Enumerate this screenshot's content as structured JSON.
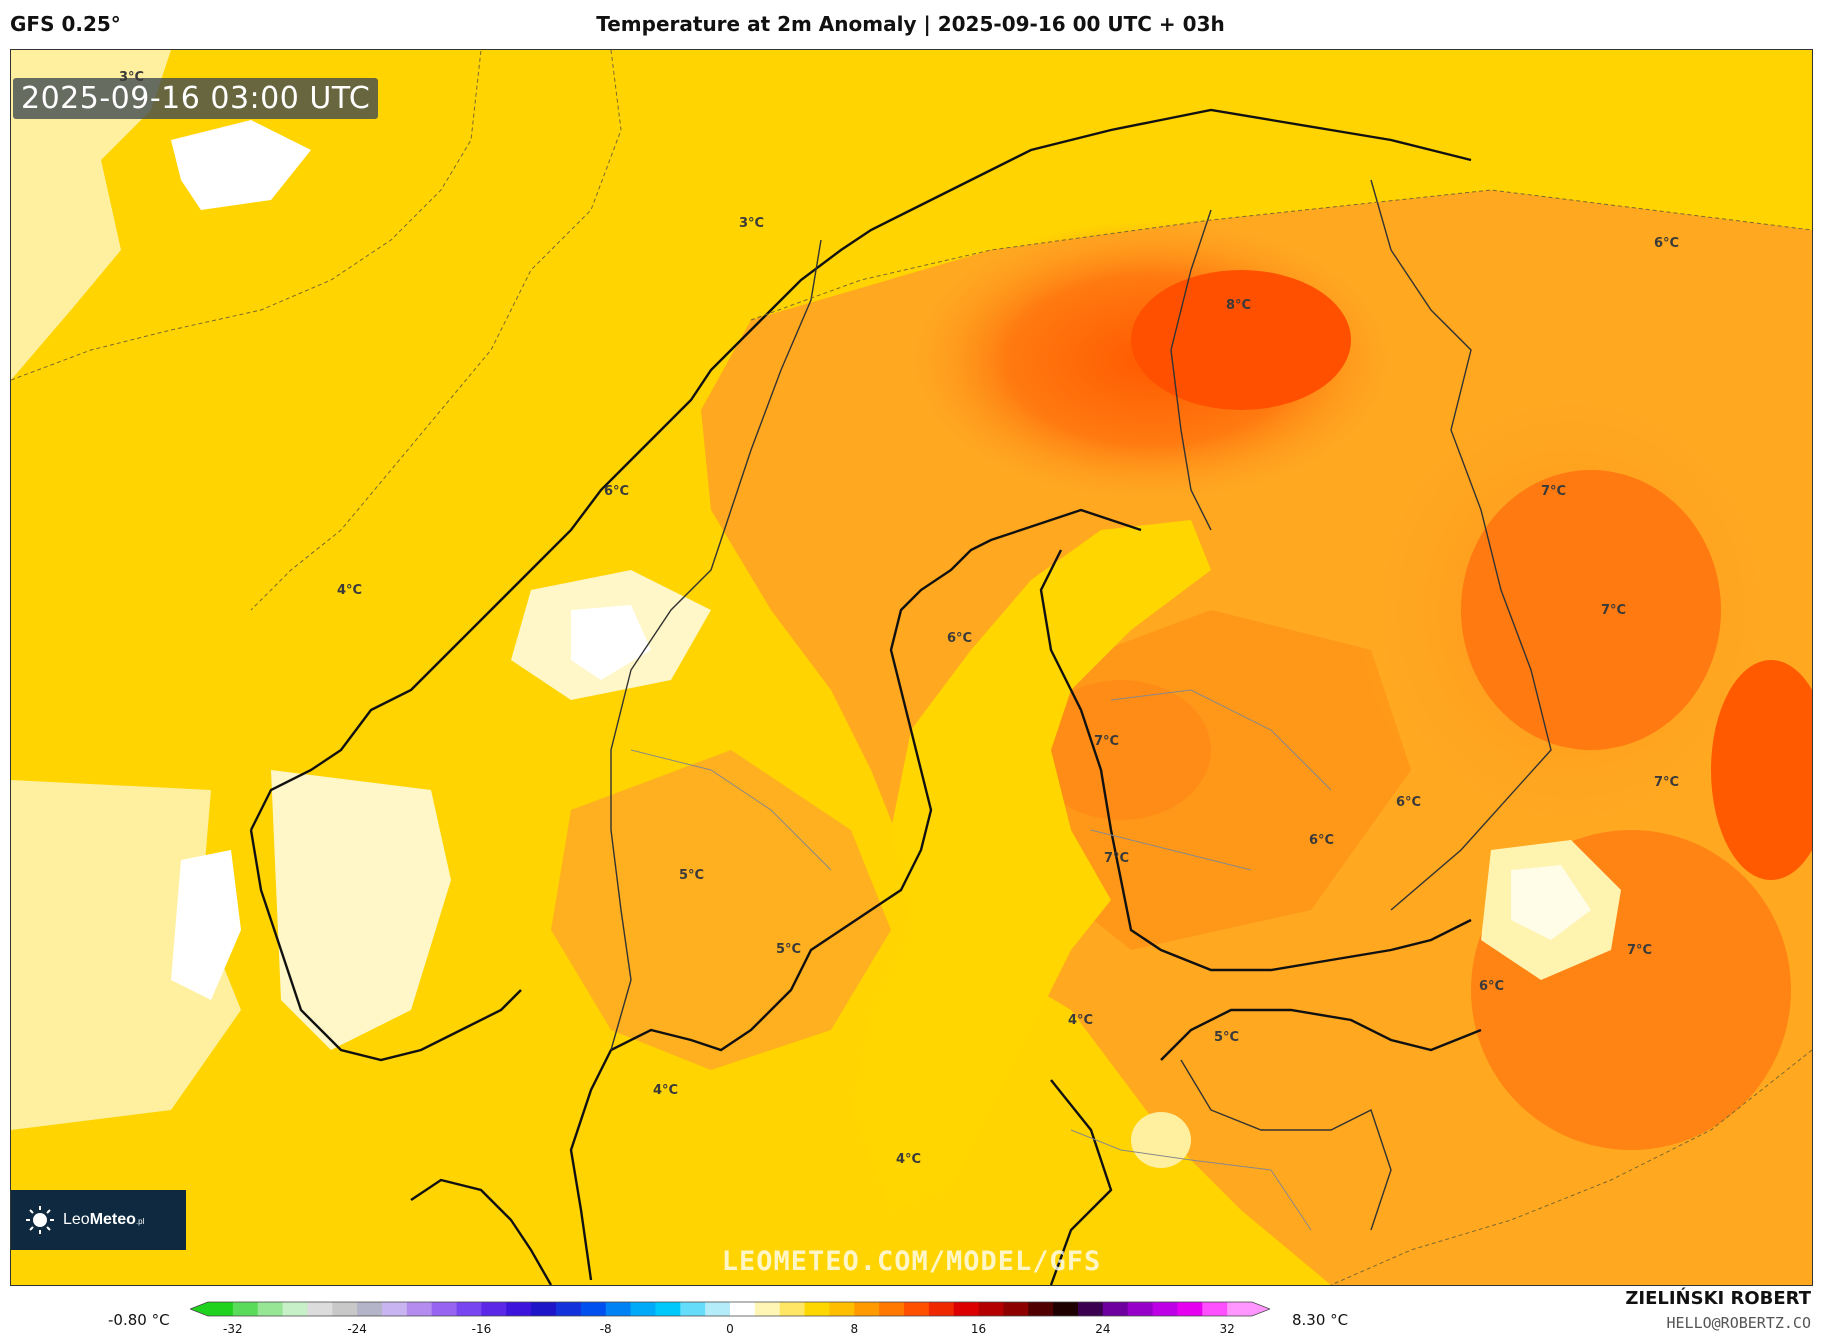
{
  "header": {
    "model": "GFS 0.25°",
    "title": "Temperature at 2m Anomaly | 2025-09-16 00 UTC + 03h"
  },
  "map": {
    "timestamp": "2025-09-16 03:00 UTC",
    "watermark": "LEOMETEO.COM/MODEL/GFS",
    "isotherm_labels": [
      {
        "text": "3°C"
      },
      {
        "text": "3°C"
      },
      {
        "text": "4°C"
      },
      {
        "text": "6°C"
      },
      {
        "text": "6°C"
      },
      {
        "text": "8°C"
      },
      {
        "text": "6°C"
      },
      {
        "text": "7°C"
      },
      {
        "text": "7°C"
      },
      {
        "text": "7°C"
      },
      {
        "text": "7°C"
      },
      {
        "text": "6°C"
      },
      {
        "text": "6°C"
      },
      {
        "text": "7°C"
      },
      {
        "text": "5°C"
      },
      {
        "text": "5°C"
      },
      {
        "text": "7°C"
      },
      {
        "text": "6°C"
      },
      {
        "text": "4°C"
      },
      {
        "text": "5°C"
      },
      {
        "text": "4°C"
      },
      {
        "text": "4°C"
      }
    ]
  },
  "logo": {
    "name_light": "Leo",
    "name_bold": "Meteo",
    "suffix": ".pl"
  },
  "legend": {
    "min_label": "-0.80 °C",
    "max_label": "8.30 °C",
    "ticks": [
      "-32",
      "-24",
      "-16",
      "-8",
      "0",
      "8",
      "16",
      "24",
      "32"
    ],
    "colors": [
      "#1ed21e",
      "#5adc5a",
      "#96e696",
      "#c8f0c8",
      "#dcdcdc",
      "#c8c8c8",
      "#b4b4c8",
      "#c8b4f0",
      "#b48cf0",
      "#9664f0",
      "#7846f0",
      "#5a28e6",
      "#3c14dc",
      "#1e14c8",
      "#1432dc",
      "#0050f0",
      "#0082f5",
      "#00aaf8",
      "#00c8fa",
      "#64dcfa",
      "#b4ecfa",
      "#ffffff",
      "#fff5b4",
      "#ffe664",
      "#ffd700",
      "#ffbe00",
      "#ff9b00",
      "#ff7800",
      "#ff5000",
      "#f02800",
      "#dc0000",
      "#b40000",
      "#8c0000",
      "#500000",
      "#1e0000",
      "#3c0050",
      "#6e00a0",
      "#9600c8",
      "#be00e6",
      "#e600f0",
      "#ff50ff",
      "#ff96ff"
    ]
  },
  "credits": {
    "author": "ZIELIŃSKI ROBERT",
    "email": "HELLO@ROBERTZ.CO"
  }
}
